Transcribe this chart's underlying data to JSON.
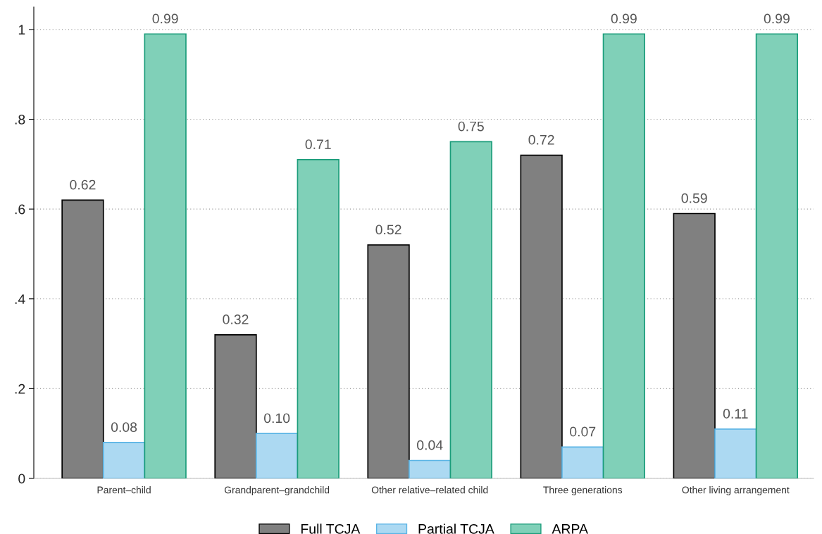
{
  "chart_data": {
    "type": "bar",
    "categories": [
      "Parent–child",
      "Grandparent–grandchild",
      "Other relative–related child",
      "Three generations",
      "Other living arrangement"
    ],
    "series": [
      {
        "name": "Full TCJA",
        "color": "#808080",
        "values": [
          0.62,
          0.32,
          0.52,
          0.72,
          0.59
        ],
        "value_labels": [
          "0.62",
          "0.32",
          "0.52",
          "0.72",
          "0.59"
        ]
      },
      {
        "name": "Partial TCJA",
        "color": "#acd9f2",
        "values": [
          0.08,
          0.1,
          0.04,
          0.07,
          0.11
        ],
        "value_labels": [
          "0.08",
          "0.10",
          "0.04",
          "0.07",
          "0.11"
        ]
      },
      {
        "name": "ARPA",
        "color": "#80d0b8",
        "values": [
          0.99,
          0.71,
          0.75,
          0.99,
          0.99
        ],
        "value_labels": [
          "0.99",
          "0.71",
          "0.75",
          "0.99",
          "0.99"
        ]
      }
    ],
    "ylim": [
      0,
      1.05
    ],
    "yticks": [
      0,
      {
        "value": 0.2,
        "label": ".2"
      },
      {
        "value": 0.4,
        "label": ".4"
      },
      {
        "value": 0.6,
        "label": ".6"
      },
      {
        "value": 0.8,
        "label": ".8"
      },
      1
    ],
    "grid": "y",
    "legend": "bottom"
  }
}
